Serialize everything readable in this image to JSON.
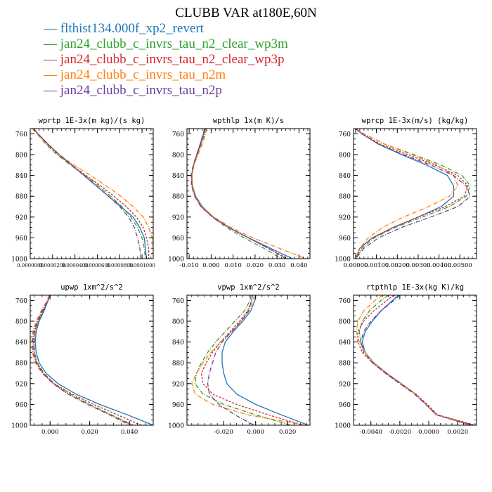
{
  "figure": {
    "title": "CLUBB VAR at180E,60N"
  },
  "legend": [
    {
      "label": "flthist134.000f_xp2_revert",
      "color": "#1f77b4",
      "dash": ""
    },
    {
      "label": "jan24_clubb_c_invrs_tau_n2_clear_wp3m",
      "color": "#2ca02c",
      "dash": "6,2,1,2"
    },
    {
      "label": "jan24_clubb_c_invrs_tau_n2_clear_wp3p",
      "color": "#d62728",
      "dash": "3,2"
    },
    {
      "label": "jan24_clubb_c_invrs_tau_n2m",
      "color": "#ff7f0e",
      "dash": "6,2,1,2"
    },
    {
      "label": "jan24_clubb_c_invrs_tau_n2p",
      "color": "#6a3d9a",
      "dash": "6,2,1,2"
    }
  ],
  "chart_data": [
    {
      "type": "line",
      "title": "wprtp  1E-3x(m kg)/(s kg)",
      "ylim": [
        1000,
        750
      ],
      "xlim": [
        0.0,
        0.00011
      ],
      "yticks": [
        760,
        800,
        840,
        880,
        920,
        960,
        1000
      ],
      "xticks": [
        0.0,
        2e-05,
        4e-05,
        6e-05,
        8e-05,
        0.0001
      ],
      "xtick_labels": [
        "0.0000000",
        "0.0000200",
        "0.0000400",
        "0.0000600",
        "0.0000800",
        "0.0001000"
      ],
      "y": [
        750,
        760,
        780,
        800,
        820,
        840,
        860,
        880,
        900,
        920,
        940,
        960,
        980,
        1000
      ],
      "series": [
        {
          "x": [
            3e-06,
            7e-06,
            1.6e-05,
            2.6e-05,
            3.7e-05,
            4.8e-05,
            5.9e-05,
            7e-05,
            8.1e-05,
            9.2e-05,
            9.8e-05,
            0.000102,
            0.000103,
            0.000104
          ]
        },
        {
          "x": [
            2e-06,
            6e-06,
            1.4e-05,
            2.4e-05,
            3.6e-05,
            4.9e-05,
            6.1e-05,
            7.2e-05,
            8.2e-05,
            9e-05,
            9.6e-05,
            0.0001,
            0.000102,
            0.000103
          ]
        },
        {
          "x": [
            3e-06,
            7e-06,
            1.5e-05,
            2.5e-05,
            3.7e-05,
            5e-05,
            6.3e-05,
            7.5e-05,
            8.6e-05,
            9.5e-05,
            0.000101,
            0.000104,
            0.000106,
            0.000106
          ]
        },
        {
          "x": [
            2e-06,
            6e-06,
            1.5e-05,
            2.6e-05,
            3.9e-05,
            5.4e-05,
            6.8e-05,
            8.1e-05,
            9.2e-05,
            0.000101,
            0.000106,
            0.000109,
            0.00011,
            0.00011
          ]
        },
        {
          "x": [
            3e-06,
            7e-06,
            1.6e-05,
            2.6e-05,
            3.7e-05,
            4.8e-05,
            5.9e-05,
            7e-05,
            8e-05,
            8.8e-05,
            9.3e-05,
            9.6e-05,
            9.8e-05,
            9.9e-05
          ]
        }
      ]
    },
    {
      "type": "line",
      "title": "wpthlp  1x(m K)/s",
      "ylim": [
        1000,
        750
      ],
      "xlim": [
        -0.011,
        0.045
      ],
      "yticks": [
        760,
        800,
        840,
        880,
        920,
        960,
        1000
      ],
      "xticks": [
        -0.01,
        0.0,
        0.01,
        0.02,
        0.03,
        0.04
      ],
      "xtick_labels": [
        "-0.010",
        "0.000",
        "0.010",
        "0.020",
        "0.030",
        "0.040"
      ],
      "y": [
        750,
        760,
        780,
        800,
        820,
        840,
        860,
        880,
        900,
        920,
        940,
        960,
        980,
        1000
      ],
      "series": [
        {
          "x": [
            -0.003,
            -0.0035,
            -0.005,
            -0.0065,
            -0.008,
            -0.0088,
            -0.0085,
            -0.007,
            -0.004,
            0.001,
            0.008,
            0.017,
            0.027,
            0.037
          ]
        },
        {
          "x": [
            -0.0025,
            -0.003,
            -0.0045,
            -0.0062,
            -0.0078,
            -0.0087,
            -0.0084,
            -0.0072,
            -0.0045,
            0.0005,
            0.007,
            0.015,
            0.024,
            0.032
          ]
        },
        {
          "x": [
            -0.0028,
            -0.0033,
            -0.0048,
            -0.0064,
            -0.008,
            -0.0089,
            -0.0087,
            -0.0074,
            -0.0046,
            0.0008,
            0.008,
            0.017,
            0.026,
            0.035
          ]
        },
        {
          "x": [
            -0.002,
            -0.0025,
            -0.004,
            -0.006,
            -0.0078,
            -0.0088,
            -0.0086,
            -0.0072,
            -0.0043,
            0.0012,
            0.009,
            0.019,
            0.031,
            0.043
          ]
        },
        {
          "x": [
            -0.003,
            -0.0036,
            -0.005,
            -0.0066,
            -0.0082,
            -0.0091,
            -0.0089,
            -0.0075,
            -0.0047,
            0.0006,
            0.008,
            0.017,
            0.026,
            0.034
          ]
        }
      ]
    },
    {
      "type": "line",
      "title": "wprcp  1E-3x(m/s) (kg/kg)",
      "ylim": [
        1000,
        750
      ],
      "xlim": [
        -0.0001,
        0.0058
      ],
      "yticks": [
        760,
        800,
        840,
        880,
        920,
        960,
        1000
      ],
      "xticks": [
        0.0,
        0.001,
        0.002,
        0.003,
        0.004,
        0.005
      ],
      "xtick_labels": [
        "0.00000",
        "0.00100",
        "0.00200",
        "0.00300",
        "0.00400",
        "0.00500"
      ],
      "y": [
        750,
        760,
        780,
        800,
        820,
        840,
        860,
        880,
        900,
        920,
        940,
        960,
        980,
        1000
      ],
      "series": [
        {
          "x": [
            0.0,
            0.0003,
            0.0011,
            0.0022,
            0.0034,
            0.0044,
            0.0047,
            0.0047,
            0.0041,
            0.003,
            0.0018,
            0.0008,
            0.0002,
            0.0
          ]
        },
        {
          "x": [
            0.0,
            0.0004,
            0.0014,
            0.0028,
            0.0041,
            0.0051,
            0.0055,
            0.0053,
            0.0045,
            0.0032,
            0.0019,
            0.0009,
            0.0003,
            0.0
          ]
        },
        {
          "x": [
            0.0,
            0.0003,
            0.0012,
            0.0025,
            0.0038,
            0.0049,
            0.0054,
            0.0052,
            0.0043,
            0.003,
            0.0018,
            0.0008,
            0.0002,
            0.0
          ]
        },
        {
          "x": [
            0.0,
            0.0004,
            0.0014,
            0.0027,
            0.0039,
            0.0047,
            0.0049,
            0.0045,
            0.0035,
            0.0023,
            0.0013,
            0.0006,
            0.0002,
            0.0
          ]
        },
        {
          "x": [
            0.0,
            0.0003,
            0.0011,
            0.0023,
            0.0036,
            0.0047,
            0.0053,
            0.0055,
            0.0049,
            0.0036,
            0.0022,
            0.0011,
            0.0004,
            0.0
          ]
        }
      ]
    },
    {
      "type": "line",
      "title": "upwp  1xm^2/s^2",
      "ylim": [
        1000,
        750
      ],
      "xlim": [
        -0.01,
        0.052
      ],
      "yticks": [
        760,
        800,
        840,
        880,
        920,
        960,
        1000
      ],
      "xticks": [
        0.0,
        0.02,
        0.04
      ],
      "xtick_labels": [
        "0.000",
        "0.020",
        "0.040"
      ],
      "y": [
        750,
        760,
        780,
        800,
        820,
        840,
        860,
        880,
        900,
        920,
        940,
        960,
        980,
        1000
      ],
      "series": [
        {
          "x": [
            0.0,
            -0.001,
            -0.003,
            -0.0055,
            -0.007,
            -0.0075,
            -0.007,
            -0.0055,
            -0.002,
            0.004,
            0.013,
            0.025,
            0.039,
            0.052
          ]
        },
        {
          "x": [
            0.0,
            -0.001,
            -0.0035,
            -0.006,
            -0.0075,
            -0.008,
            -0.0078,
            -0.0065,
            -0.003,
            0.002,
            0.01,
            0.02,
            0.031,
            0.042
          ]
        },
        {
          "x": [
            0.0,
            -0.001,
            -0.0035,
            -0.006,
            -0.0078,
            -0.0083,
            -0.008,
            -0.0068,
            -0.0034,
            0.002,
            0.011,
            0.022,
            0.034,
            0.046
          ]
        },
        {
          "x": [
            -0.0005,
            -0.0015,
            -0.0045,
            -0.007,
            -0.0087,
            -0.0093,
            -0.009,
            -0.0075,
            -0.004,
            0.0015,
            0.009,
            0.019,
            0.03,
            0.04
          ]
        },
        {
          "x": [
            0.0,
            -0.001,
            -0.004,
            -0.0065,
            -0.0082,
            -0.0088,
            -0.0085,
            -0.007,
            -0.0037,
            0.0015,
            0.009,
            0.019,
            0.03,
            0.041
          ]
        }
      ]
    },
    {
      "type": "line",
      "title": "vpwp  1xm^2/s^2",
      "ylim": [
        1000,
        750
      ],
      "xlim": [
        -0.043,
        0.034
      ],
      "yticks": [
        760,
        800,
        840,
        880,
        920,
        960,
        1000
      ],
      "xticks": [
        -0.02,
        0.0,
        0.02
      ],
      "xtick_labels": [
        "-0.020",
        "0.000",
        "0.020"
      ],
      "y": [
        750,
        760,
        780,
        800,
        820,
        840,
        860,
        880,
        900,
        920,
        940,
        960,
        980,
        1000
      ],
      "series": [
        {
          "x": [
            0.0,
            -0.0005,
            -0.003,
            -0.008,
            -0.014,
            -0.019,
            -0.021,
            -0.021,
            -0.02,
            -0.018,
            -0.012,
            0.0,
            0.016,
            0.033
          ]
        },
        {
          "x": [
            -0.003,
            -0.0035,
            -0.007,
            -0.013,
            -0.019,
            -0.025,
            -0.03,
            -0.034,
            -0.037,
            -0.038,
            -0.033,
            -0.02,
            0.0,
            0.022
          ]
        },
        {
          "x": [
            -0.002,
            -0.0025,
            -0.005,
            -0.01,
            -0.016,
            -0.022,
            -0.027,
            -0.031,
            -0.034,
            -0.033,
            -0.027,
            -0.012,
            0.008,
            0.03
          ]
        },
        {
          "x": [
            -0.001,
            -0.0015,
            -0.004,
            -0.009,
            -0.015,
            -0.022,
            -0.028,
            -0.033,
            -0.037,
            -0.04,
            -0.038,
            -0.027,
            -0.005,
            0.031
          ]
        },
        {
          "x": [
            -0.002,
            -0.0025,
            -0.0045,
            -0.009,
            -0.015,
            -0.021,
            -0.025,
            -0.027,
            -0.029,
            -0.03,
            -0.029,
            -0.023,
            -0.013,
            -0.001
          ]
        }
      ]
    },
    {
      "type": "line",
      "title": "rtpthlp  1E-3x(kg K)/kg",
      "ylim": [
        1000,
        750
      ],
      "xlim": [
        -0.0052,
        0.0033
      ],
      "yticks": [
        760,
        800,
        840,
        880,
        920,
        960,
        1000
      ],
      "xticks": [
        -0.004,
        -0.002,
        0.0,
        0.002
      ],
      "xtick_labels": [
        "-0.0040",
        "-0.0020",
        "0.0000",
        "0.0020"
      ],
      "y": [
        750,
        760,
        780,
        800,
        820,
        840,
        860,
        880,
        900,
        920,
        940,
        960,
        980,
        1000
      ],
      "series": [
        {
          "x": [
            -0.0021,
            -0.0025,
            -0.0033,
            -0.0039,
            -0.0044,
            -0.0046,
            -0.0044,
            -0.0038,
            -0.0029,
            -0.0019,
            -0.0009,
            -0.0002,
            0.0005,
            0.0031
          ]
        },
        {
          "x": [
            -0.0028,
            -0.0033,
            -0.0041,
            -0.0046,
            -0.0048,
            -0.0047,
            -0.0044,
            -0.0038,
            -0.0029,
            -0.0019,
            -0.0009,
            -0.0002,
            0.0005,
            0.0028
          ]
        },
        {
          "x": [
            -0.0024,
            -0.0029,
            -0.0038,
            -0.0045,
            -0.0049,
            -0.0049,
            -0.0046,
            -0.0039,
            -0.003,
            -0.002,
            -0.0009,
            -0.0001,
            0.0006,
            0.0032
          ]
        },
        {
          "x": [
            -0.0032,
            -0.0037,
            -0.0045,
            -0.0049,
            -0.005,
            -0.0048,
            -0.0044,
            -0.0038,
            -0.0029,
            -0.0019,
            -0.0009,
            -0.0002,
            0.0005,
            0.0029
          ]
        },
        {
          "x": [
            -0.002,
            -0.0024,
            -0.0033,
            -0.004,
            -0.0045,
            -0.0047,
            -0.0045,
            -0.0039,
            -0.003,
            -0.002,
            -0.001,
            -0.0002,
            0.0006,
            0.003
          ]
        }
      ]
    }
  ]
}
